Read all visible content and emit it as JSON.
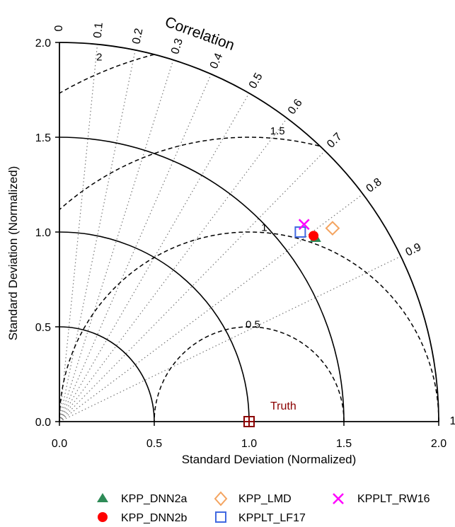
{
  "chart_data": {
    "type": "scatter",
    "subtype": "taylor-diagram",
    "xlabel": "Standard Deviation (Normalized)",
    "ylabel": "Standard Deviation (Normalized)",
    "arc_title": "Correlation",
    "sd_max": 2.0,
    "sd_ticks": [
      "0.0",
      "0.5",
      "1.0",
      "1.5",
      "2.0"
    ],
    "correlation_ticks": [
      "0",
      "0.1",
      "0.2",
      "0.3",
      "0.4",
      "0.5",
      "0.6",
      "0.7",
      "0.8",
      "0.9",
      "1"
    ],
    "correlation_values": [
      0,
      0.1,
      0.2,
      0.3,
      0.4,
      0.5,
      0.6,
      0.7,
      0.8,
      0.9,
      1.0
    ],
    "sd_arcs": [
      0.5,
      1.0,
      1.5,
      2.0
    ],
    "rms_contours": [
      0.5,
      1.0,
      1.5,
      2.0
    ],
    "rms_labels": [
      "0.5",
      "1",
      "1.5",
      "2"
    ],
    "reference": {
      "label": "Truth",
      "sd": 1.0,
      "corr": 1.0,
      "color": "#8b0000"
    },
    "series": [
      {
        "name": "KPP_DNN2a",
        "x": 1.35,
        "y": 0.97,
        "marker": "triangle",
        "color": "#2e8b57"
      },
      {
        "name": "KPP_DNN2b",
        "x": 1.34,
        "y": 0.98,
        "marker": "circle",
        "color": "#ff0000"
      },
      {
        "name": "KPP_LMD",
        "x": 1.44,
        "y": 1.02,
        "marker": "diamond",
        "color": "#f4a460"
      },
      {
        "name": "KPPLT_LF17",
        "x": 1.27,
        "y": 1.0,
        "marker": "square",
        "color": "#4169e1"
      },
      {
        "name": "KPPLT_RW16",
        "x": 1.29,
        "y": 1.04,
        "marker": "x",
        "color": "#ff00ff"
      }
    ],
    "grid": true,
    "legend_position": "bottom"
  }
}
